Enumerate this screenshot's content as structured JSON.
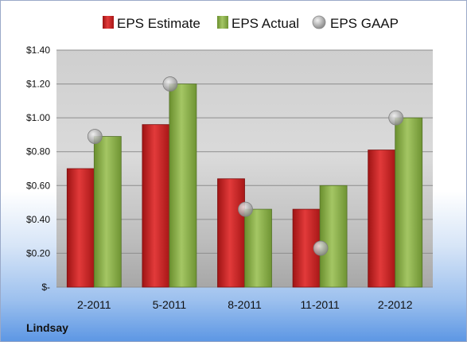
{
  "chart_data": {
    "type": "bar",
    "categories": [
      "2-2011",
      "5-2011",
      "8-2011",
      "11-2011",
      "2-2012"
    ],
    "series": [
      {
        "name": "EPS Estimate",
        "type": "bar",
        "color": "#c41d1d",
        "values": [
          0.7,
          0.96,
          0.64,
          0.46,
          0.81
        ]
      },
      {
        "name": "EPS Actual",
        "type": "bar",
        "color": "#8ab04a",
        "values": [
          0.89,
          1.2,
          0.46,
          0.6,
          1.0
        ]
      },
      {
        "name": "EPS GAAP",
        "type": "marker",
        "color": "#a8a8a8",
        "values": [
          0.89,
          1.2,
          0.46,
          0.23,
          1.0
        ]
      }
    ],
    "y_ticks": [
      {
        "value": 0.0,
        "label": "$-"
      },
      {
        "value": 0.2,
        "label": "$0.20"
      },
      {
        "value": 0.4,
        "label": "$0.40"
      },
      {
        "value": 0.6,
        "label": "$0.60"
      },
      {
        "value": 0.8,
        "label": "$0.80"
      },
      {
        "value": 1.0,
        "label": "$1.00"
      },
      {
        "value": 1.2,
        "label": "$1.20"
      },
      {
        "value": 1.4,
        "label": "$1.40"
      }
    ],
    "ylim": [
      0,
      1.4
    ],
    "grid": true,
    "legend_position": "top",
    "caption": "Lindsay"
  }
}
